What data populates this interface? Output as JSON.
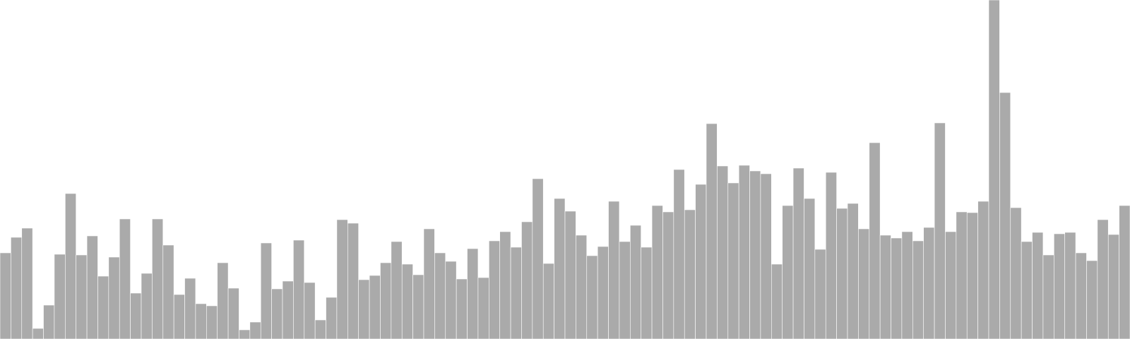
{
  "chart_data": {
    "type": "bar",
    "title": "",
    "xlabel": "",
    "ylabel": "",
    "ylim": [
      0,
      480
    ],
    "grid": false,
    "legend": "none",
    "bar_color": "#aaaaaa",
    "bar_edge_color": "#ffffff",
    "values": [
      122,
      144,
      157,
      15,
      48,
      120,
      206,
      119,
      146,
      89,
      116,
      170,
      65,
      93,
      170,
      133,
      63,
      86,
      50,
      47,
      108,
      72,
      13,
      24,
      136,
      71,
      82,
      140,
      80,
      27,
      59,
      169,
      164,
      84,
      90,
      108,
      138,
      106,
      91,
      156,
      122,
      110,
      85,
      128,
      87,
      139,
      152,
      130,
      166,
      227,
      107,
      199,
      181,
      147,
      118,
      131,
      195,
      138,
      161,
      130,
      189,
      180,
      240,
      183,
      219,
      305,
      245,
      221,
      246,
      238,
      234,
      106,
      189,
      242,
      199,
      127,
      236,
      185,
      192,
      156,
      278,
      147,
      143,
      152,
      139,
      158,
      306,
      152,
      180,
      179,
      195,
      480,
      349,
      186,
      138,
      151,
      119,
      149,
      151,
      122,
      111,
      169,
      148,
      189
    ]
  }
}
